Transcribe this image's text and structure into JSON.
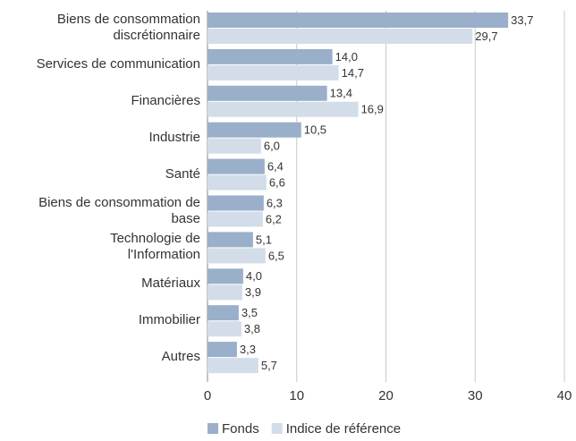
{
  "chart_data": {
    "type": "bar",
    "orientation": "horizontal",
    "categories": [
      "Biens de consommation\ndiscrétionnaire",
      "Services de communication",
      "Financières",
      "Industrie",
      "Santé",
      "Biens de consommation de\nbase",
      "Technologie de\nl'Information",
      "Matériaux",
      "Immobilier",
      "Autres"
    ],
    "series": [
      {
        "name": "Fonds",
        "color": "#9aafc9",
        "values": [
          33.7,
          14.0,
          13.4,
          10.5,
          6.4,
          6.3,
          5.1,
          4.0,
          3.5,
          3.3
        ],
        "value_labels": [
          "33,7",
          "14,0",
          "13,4",
          "10,5",
          "6,4",
          "6,3",
          "5,1",
          "4,0",
          "3,5",
          "3,3"
        ]
      },
      {
        "name": "Indice de référence",
        "color": "#d3dde9",
        "values": [
          29.7,
          14.7,
          16.9,
          6.0,
          6.6,
          6.2,
          6.5,
          3.9,
          3.8,
          5.7
        ],
        "value_labels": [
          "29,7",
          "14,7",
          "16,9",
          "6,0",
          "6,6",
          "6,2",
          "6,5",
          "3,9",
          "3,8",
          "5,7"
        ]
      }
    ],
    "xlim": [
      0,
      40
    ],
    "xticks": [
      0,
      10,
      20,
      30,
      40
    ],
    "grid": true,
    "legend": "bottom"
  }
}
